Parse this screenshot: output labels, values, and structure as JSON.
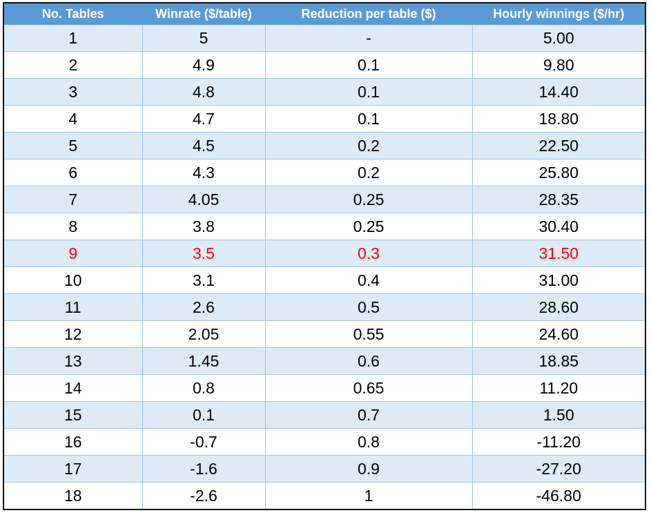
{
  "headers": {
    "tables": "No. Tables",
    "winrate": "Winrate ($/table)",
    "reduction": "Reduction per table ($)",
    "hourly": "Hourly winnings ($/hr)"
  },
  "colors": {
    "header_bg": "#5b9bd5",
    "band_bg": "#ddebf7",
    "highlight_text": "#ff0000"
  },
  "highlighted_row": 9,
  "rows": [
    {
      "tables": "1",
      "winrate": "5",
      "reduction": "-",
      "hourly": "5.00"
    },
    {
      "tables": "2",
      "winrate": "4.9",
      "reduction": "0.1",
      "hourly": "9.80"
    },
    {
      "tables": "3",
      "winrate": "4.8",
      "reduction": "0.1",
      "hourly": "14.40"
    },
    {
      "tables": "4",
      "winrate": "4.7",
      "reduction": "0.1",
      "hourly": "18.80"
    },
    {
      "tables": "5",
      "winrate": "4.5",
      "reduction": "0.2",
      "hourly": "22.50"
    },
    {
      "tables": "6",
      "winrate": "4.3",
      "reduction": "0.2",
      "hourly": "25.80"
    },
    {
      "tables": "7",
      "winrate": "4.05",
      "reduction": "0.25",
      "hourly": "28.35"
    },
    {
      "tables": "8",
      "winrate": "3.8",
      "reduction": "0.25",
      "hourly": "30.40"
    },
    {
      "tables": "9",
      "winrate": "3.5",
      "reduction": "0.3",
      "hourly": "31.50"
    },
    {
      "tables": "10",
      "winrate": "3.1",
      "reduction": "0.4",
      "hourly": "31.00"
    },
    {
      "tables": "11",
      "winrate": "2.6",
      "reduction": "0.5",
      "hourly": "28.60"
    },
    {
      "tables": "12",
      "winrate": "2.05",
      "reduction": "0.55",
      "hourly": "24.60"
    },
    {
      "tables": "13",
      "winrate": "1.45",
      "reduction": "0.6",
      "hourly": "18.85"
    },
    {
      "tables": "14",
      "winrate": "0.8",
      "reduction": "0.65",
      "hourly": "11.20"
    },
    {
      "tables": "15",
      "winrate": "0.1",
      "reduction": "0.7",
      "hourly": "1.50"
    },
    {
      "tables": "16",
      "winrate": "-0.7",
      "reduction": "0.8",
      "hourly": "-11.20"
    },
    {
      "tables": "17",
      "winrate": "-1.6",
      "reduction": "0.9",
      "hourly": "-27.20"
    },
    {
      "tables": "18",
      "winrate": "-2.6",
      "reduction": "1",
      "hourly": "-46.80"
    }
  ]
}
